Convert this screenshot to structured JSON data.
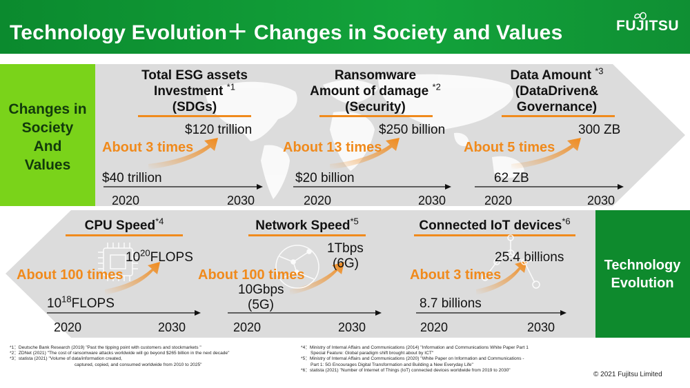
{
  "header": {
    "title": "Technology Evolution＋ Changes in Society and Values",
    "logo": "FUJITSU"
  },
  "side_labels": {
    "society": [
      "Changes in",
      "Society",
      "And",
      "Values"
    ],
    "technology": [
      "Technology",
      "Evolution"
    ]
  },
  "society_panels": [
    {
      "title_lines": [
        "Total ESG assets",
        "Investment",
        "(SDGs)"
      ],
      "ref": "*1",
      "start_value": "$40 trillion",
      "end_value": "$120 trillion",
      "multiplier": "About 3 times",
      "year_start": "2020",
      "year_end": "2030"
    },
    {
      "title_lines": [
        "Ransomware",
        "Amount of damage",
        "(Security)"
      ],
      "ref": "*2",
      "start_value": "$20 billion",
      "end_value": "$250 billion",
      "multiplier": "About 13 times",
      "year_start": "2020",
      "year_end": "2030"
    },
    {
      "title_lines": [
        "Data Amount",
        "(DataDriven&",
        "Governance)"
      ],
      "ref": "*3",
      "start_value": "62 ZB",
      "end_value": "300 ZB",
      "multiplier": "About 5 times",
      "year_start": "2020",
      "year_end": "2030"
    }
  ],
  "tech_panels": [
    {
      "title": "CPU Speed",
      "ref": "*4",
      "start_base": "10",
      "start_exp": "18",
      "start_unit": "FLOPS",
      "end_base": "10",
      "end_exp": "20",
      "end_unit": "FLOPS",
      "multiplier": "About 100 times",
      "year_start": "2020",
      "year_end": "2030",
      "icon": "cpu-chip-icon"
    },
    {
      "title": "Network Speed",
      "ref": "*5",
      "start_lines": [
        "10Gbps",
        "(5G)"
      ],
      "end_lines": [
        "1Tbps",
        "(6G)"
      ],
      "multiplier": "About 100 times",
      "year_start": "2020",
      "year_end": "2030",
      "icon": "network-globe-icon"
    },
    {
      "title": "Connected IoT devices",
      "ref": "*6",
      "start_value": "8.7 billions",
      "end_value": "25.4 billions",
      "multiplier": "About 3 times",
      "year_start": "2020",
      "year_end": "2030",
      "icon": "iot-nodes-icon"
    }
  ],
  "footnotes_left": [
    "*1：Deutsche Bank Research (2019) \"Past the tipping point with customers and                  stockmarkets \"",
    "*2：ZDNet (2021) \"The cost of ransomware attacks worldwide will go beyond $265 billion in the next decade\"",
    "*3：statista (2021) \"Volume of data/information created,",
    "captured, copied, and consumed worldwide from 2010 to 2025\""
  ],
  "footnotes_right": [
    "*4：Ministry of Internal Affairs and Communications (2014) \"Information and Communications White Paper Part 1",
    "Special Feature: Global paradigm shift brought about by ICT\"",
    "*5：Ministry of Internal Affairs and Communications (2020) \"White Paper on Information and Communications                -",
    "Part 1: 5G Encourages Digital Transformation and Building a New Everyday Life\"",
    "*6：statista (2021) \"Number of Internet of Things (IoT) connected devices worldwide from 2019 to 2030\""
  ],
  "copyright": "© 2021 Fujitsu Limited",
  "colors": {
    "header_green": "#13a33b",
    "society_label": "#7ad31a",
    "tech_label": "#0e8a2d",
    "accent_orange": "#f08a1c",
    "band_gray": "#dcdcdc"
  }
}
